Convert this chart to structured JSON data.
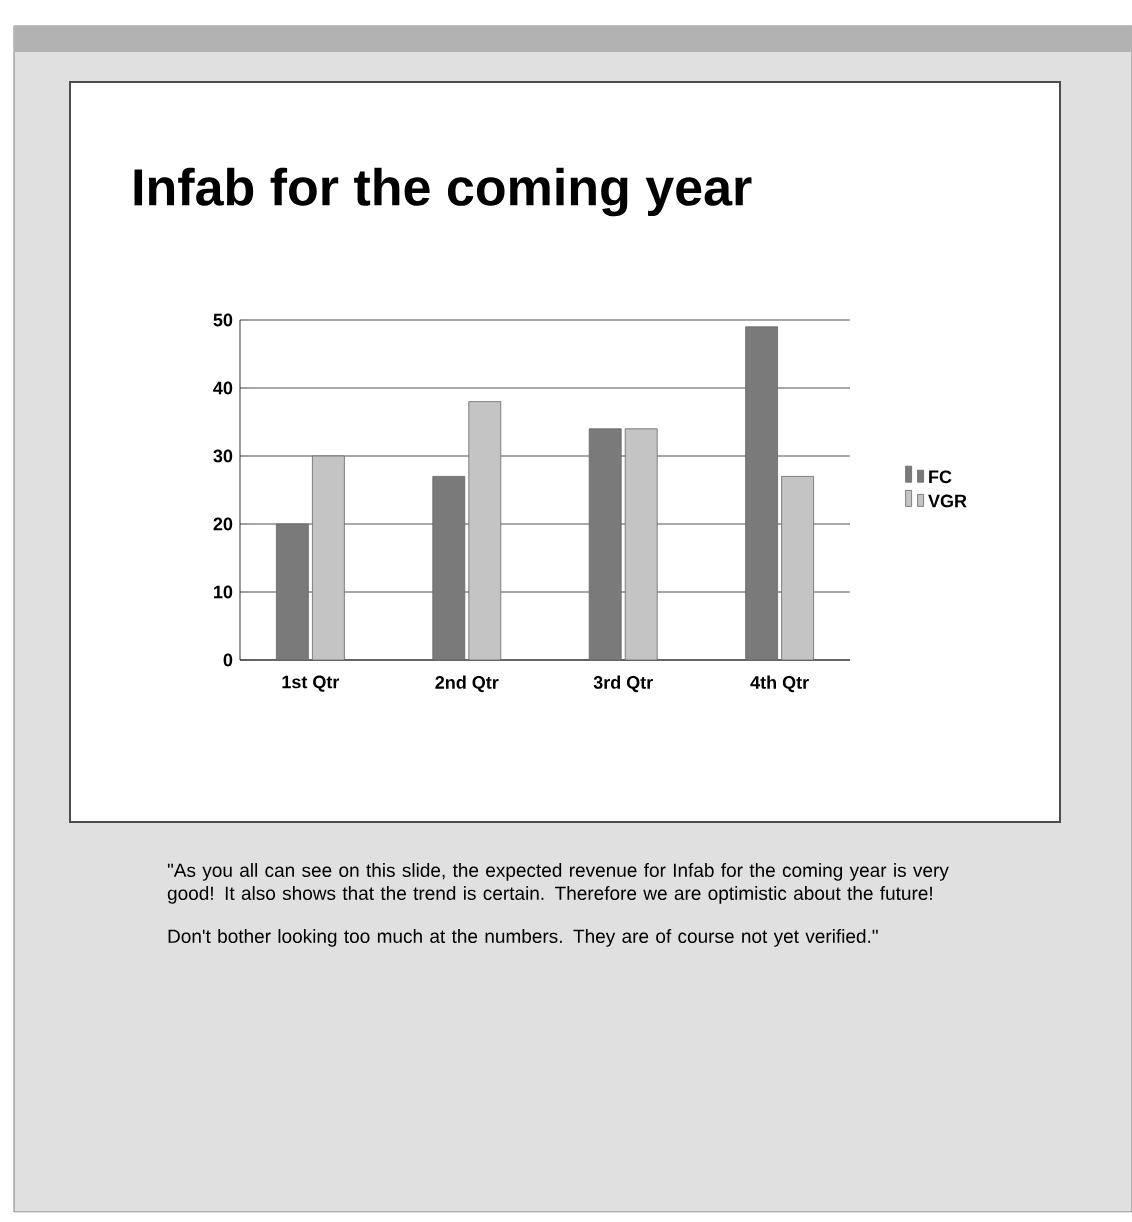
{
  "chart_data": {
    "type": "bar",
    "title": "Infab for the coming year",
    "categories": [
      "1st Qtr",
      "2nd Qtr",
      "3rd Qtr",
      "4th Qtr"
    ],
    "series": [
      {
        "name": "FC",
        "color": "#7a7a7a",
        "values": [
          20,
          27,
          34,
          49
        ]
      },
      {
        "name": "VGR",
        "color": "#c4c4c4",
        "values": [
          30,
          38,
          34,
          27
        ]
      }
    ],
    "ylim": [
      0,
      50
    ],
    "yticks": [
      0,
      10,
      20,
      30,
      40,
      50
    ],
    "grid": "y",
    "legend": "right",
    "annotations": [
      "\"As you all can see on this slide, the expected revenue for Infab for the coming year is very good! It also shows that the trend is certain. Therefore we are optimistic about the future!",
      "Don't bother looking too much at the numbers. They are of course not yet verified.\""
    ]
  }
}
